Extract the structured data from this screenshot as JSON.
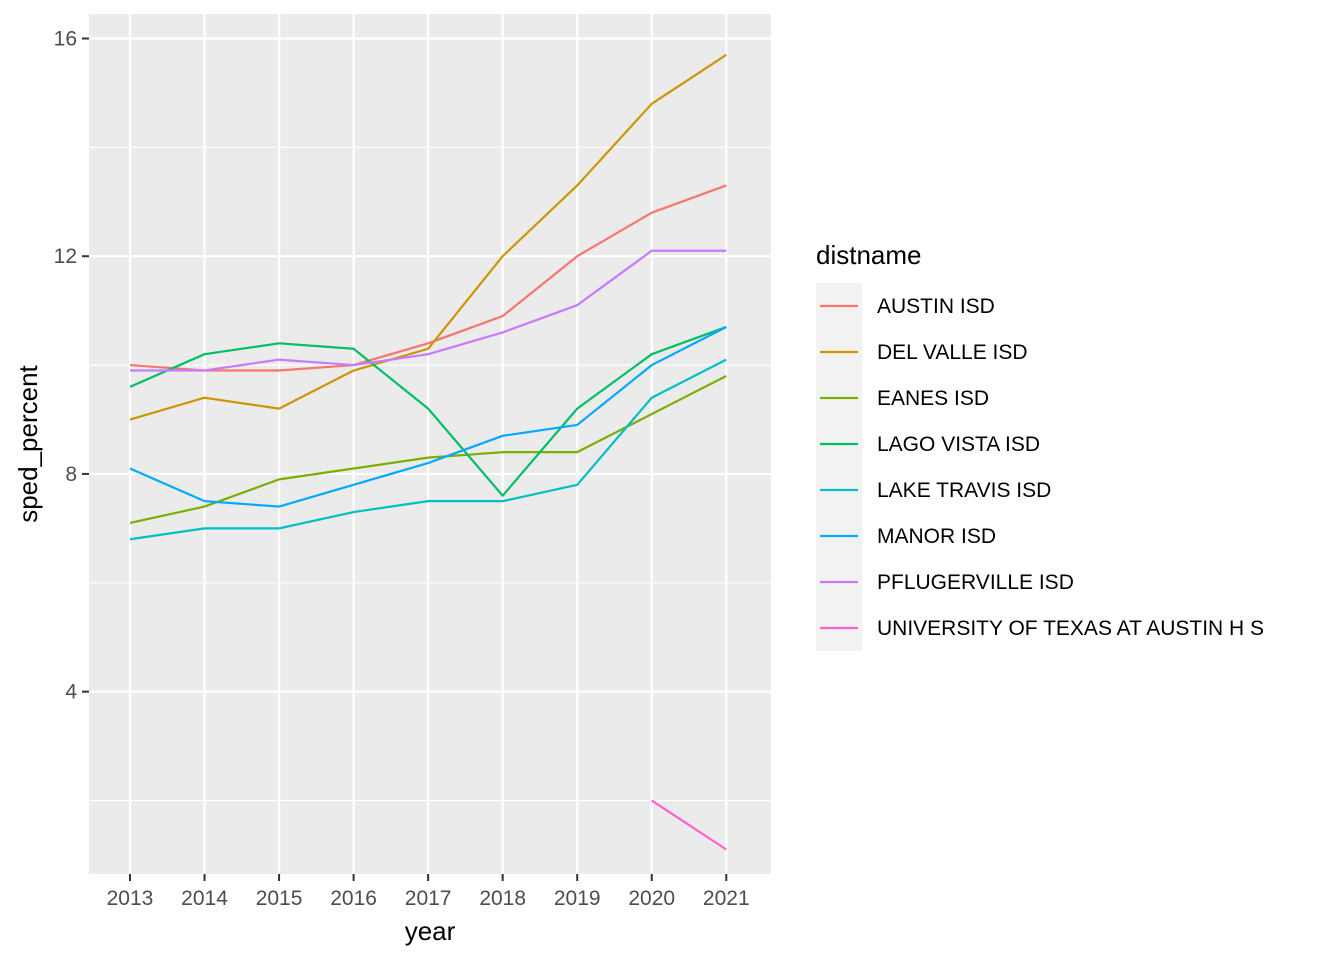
{
  "chart_data": {
    "type": "line",
    "xlabel": "year",
    "ylabel": "sped_percent",
    "x": [
      2013,
      2014,
      2015,
      2016,
      2017,
      2018,
      2019,
      2020,
      2021
    ],
    "x_tick_labels": [
      "2013",
      "2014",
      "2015",
      "2016",
      "2017",
      "2018",
      "2019",
      "2020",
      "2021"
    ],
    "y_ticks": [
      4,
      8,
      12,
      16
    ],
    "y_tick_labels": [
      "4",
      "8",
      "12",
      "16"
    ],
    "xlim": [
      2012.45,
      2021.6
    ],
    "ylim": [
      0.65,
      16.45
    ],
    "grid": true,
    "background": "#ebebeb",
    "legend": {
      "title": "distname",
      "position": "right"
    },
    "series": [
      {
        "name": "AUSTIN ISD",
        "color": "#F8766D",
        "x": [
          2013,
          2014,
          2015,
          2016,
          2017,
          2018,
          2019,
          2020,
          2021
        ],
        "values": [
          10.0,
          9.9,
          9.9,
          10.0,
          10.4,
          10.9,
          12.0,
          12.8,
          13.3
        ]
      },
      {
        "name": "DEL VALLE ISD",
        "color": "#CD9600",
        "x": [
          2013,
          2014,
          2015,
          2016,
          2017,
          2018,
          2019,
          2020,
          2021
        ],
        "values": [
          9.0,
          9.4,
          9.2,
          9.9,
          10.3,
          12.0,
          13.3,
          14.8,
          15.7
        ]
      },
      {
        "name": "EANES ISD",
        "color": "#7CAE00",
        "x": [
          2013,
          2014,
          2015,
          2016,
          2017,
          2018,
          2019,
          2020,
          2021
        ],
        "values": [
          7.1,
          7.4,
          7.9,
          8.1,
          8.3,
          8.4,
          8.4,
          9.1,
          9.8
        ]
      },
      {
        "name": "LAGO VISTA ISD",
        "color": "#00BE67",
        "x": [
          2013,
          2014,
          2015,
          2016,
          2017,
          2018,
          2019,
          2020,
          2021
        ],
        "values": [
          9.6,
          10.2,
          10.4,
          10.3,
          9.2,
          7.6,
          9.2,
          10.2,
          10.7
        ]
      },
      {
        "name": "LAKE TRAVIS ISD",
        "color": "#00BFC4",
        "x": [
          2013,
          2014,
          2015,
          2016,
          2017,
          2018,
          2019,
          2020,
          2021
        ],
        "values": [
          6.8,
          7.0,
          7.0,
          7.3,
          7.5,
          7.5,
          7.8,
          9.4,
          10.1
        ]
      },
      {
        "name": "MANOR ISD",
        "color": "#00A9FF",
        "x": [
          2013,
          2014,
          2015,
          2016,
          2017,
          2018,
          2019,
          2020,
          2021
        ],
        "values": [
          8.1,
          7.5,
          7.4,
          7.8,
          8.2,
          8.7,
          8.9,
          10.0,
          10.7
        ]
      },
      {
        "name": "PFLUGERVILLE ISD",
        "color": "#C77CFF",
        "x": [
          2013,
          2014,
          2015,
          2016,
          2017,
          2018,
          2019,
          2020,
          2021
        ],
        "values": [
          9.9,
          9.9,
          10.1,
          10.0,
          10.2,
          10.6,
          11.1,
          12.1,
          12.1
        ]
      },
      {
        "name": "UNIVERSITY OF TEXAS AT AUSTIN H S",
        "color": "#FF61CC",
        "x": [
          2020,
          2021
        ],
        "values": [
          2.0,
          1.1
        ]
      }
    ]
  }
}
